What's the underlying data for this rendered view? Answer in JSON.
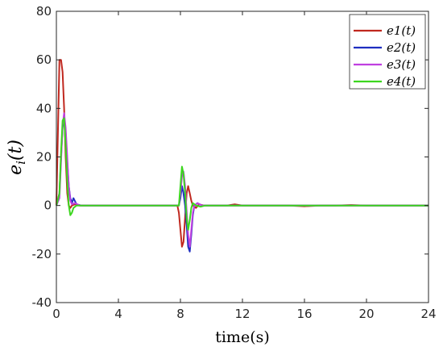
{
  "chart_data": {
    "type": "line",
    "title": "",
    "xlabel": "time(s)",
    "ylabel_main": "e",
    "ylabel_sub": "i",
    "ylabel_tail": "(t)",
    "xlim": [
      0,
      24
    ],
    "ylim": [
      -40,
      80
    ],
    "x_ticks": [
      0,
      4,
      8,
      12,
      16,
      20,
      24
    ],
    "y_ticks": [
      -40,
      -20,
      0,
      20,
      40,
      60,
      80
    ],
    "grid": false,
    "legend_position": "top-right",
    "series": [
      {
        "name": "e1(t)",
        "color": "#c0281f",
        "x": [
          0,
          0.1,
          0.2,
          0.3,
          0.4,
          0.5,
          0.6,
          0.7,
          0.8,
          0.9,
          1.0,
          1.2,
          1.5,
          2,
          3,
          4,
          5,
          6,
          7,
          7.8,
          7.9,
          8.0,
          8.1,
          8.2,
          8.3,
          8.4,
          8.5,
          8.6,
          8.7,
          8.8,
          9.0,
          9.2,
          9.5,
          10,
          11,
          11.5,
          12,
          13,
          14,
          15,
          16,
          17,
          18,
          19,
          20,
          21,
          22,
          23,
          24
        ],
        "y": [
          0,
          30,
          60,
          60,
          55,
          40,
          20,
          5,
          0,
          -1,
          0,
          0.5,
          0,
          0,
          0,
          0,
          0,
          0,
          0,
          0,
          -3,
          -10,
          -17,
          -15,
          -5,
          5,
          8,
          5,
          2,
          0,
          -1,
          0.5,
          0,
          0,
          0,
          0.5,
          0,
          0,
          0,
          0,
          -0.3,
          0,
          0,
          0.2,
          0,
          0,
          0,
          0,
          0
        ]
      },
      {
        "name": "e2(t)",
        "color": "#1f2ec0",
        "x": [
          0,
          0.2,
          0.3,
          0.4,
          0.5,
          0.6,
          0.7,
          0.8,
          0.9,
          1.0,
          1.1,
          1.3,
          1.6,
          2,
          3,
          4,
          5,
          6,
          7,
          7.9,
          8.0,
          8.1,
          8.2,
          8.3,
          8.4,
          8.5,
          8.6,
          8.7,
          8.8,
          8.9,
          9.1,
          9.4,
          10,
          11,
          12,
          13,
          14,
          15,
          16,
          17,
          18,
          19,
          20,
          21,
          22,
          23,
          24
        ],
        "y": [
          0,
          5,
          20,
          32,
          37,
          30,
          18,
          8,
          3,
          1,
          3,
          0.5,
          0,
          0,
          0,
          0,
          0,
          0,
          0,
          0,
          3,
          8,
          5,
          0,
          -8,
          -17,
          -19,
          -12,
          -4,
          0,
          1,
          0,
          0,
          0,
          0,
          0,
          0,
          0,
          0,
          0,
          0,
          0,
          0,
          0,
          0,
          0,
          0
        ]
      },
      {
        "name": "e3(t)",
        "color": "#c03fe0",
        "x": [
          0,
          0.2,
          0.3,
          0.4,
          0.5,
          0.6,
          0.7,
          0.8,
          0.9,
          1.0,
          1.2,
          1.5,
          2,
          3,
          4,
          5,
          6,
          7,
          7.9,
          8.0,
          8.1,
          8.2,
          8.3,
          8.4,
          8.5,
          8.6,
          8.7,
          8.8,
          8.9,
          9.1,
          9.4,
          10,
          11,
          12,
          13,
          14,
          15,
          16,
          17,
          18,
          19,
          20,
          21,
          22,
          23,
          24
        ],
        "y": [
          0,
          3,
          18,
          33,
          38,
          32,
          20,
          8,
          2,
          0.5,
          1,
          0,
          0,
          0,
          0,
          0,
          0,
          0,
          0,
          5,
          12,
          14,
          8,
          -2,
          -12,
          -17,
          -10,
          -3,
          0,
          1,
          0,
          0,
          0,
          0,
          0,
          0,
          0,
          0,
          0,
          0,
          0,
          0,
          0,
          0,
          0,
          0
        ]
      },
      {
        "name": "e4(t)",
        "color": "#3cd61f",
        "x": [
          0,
          0.2,
          0.3,
          0.4,
          0.5,
          0.6,
          0.7,
          0.8,
          0.9,
          1.0,
          1.1,
          1.3,
          1.6,
          2,
          3,
          4,
          5,
          6,
          7,
          7.9,
          8.0,
          8.1,
          8.2,
          8.3,
          8.4,
          8.5,
          8.6,
          8.7,
          8.8,
          9.0,
          9.3,
          9.6,
          10,
          11,
          12,
          13,
          14,
          15,
          16,
          17,
          18,
          19,
          20,
          21,
          22,
          23,
          24
        ],
        "y": [
          0,
          5,
          22,
          35,
          36,
          25,
          10,
          0,
          -4,
          -3,
          -1,
          0,
          0,
          0,
          0,
          0,
          0,
          0,
          0,
          0,
          8,
          16,
          13,
          5,
          -5,
          -10,
          -6,
          -1,
          1,
          0,
          -0.5,
          0,
          0,
          0,
          0,
          0,
          0,
          0,
          0,
          0,
          0,
          0,
          0,
          0,
          0,
          0,
          0
        ]
      }
    ]
  }
}
